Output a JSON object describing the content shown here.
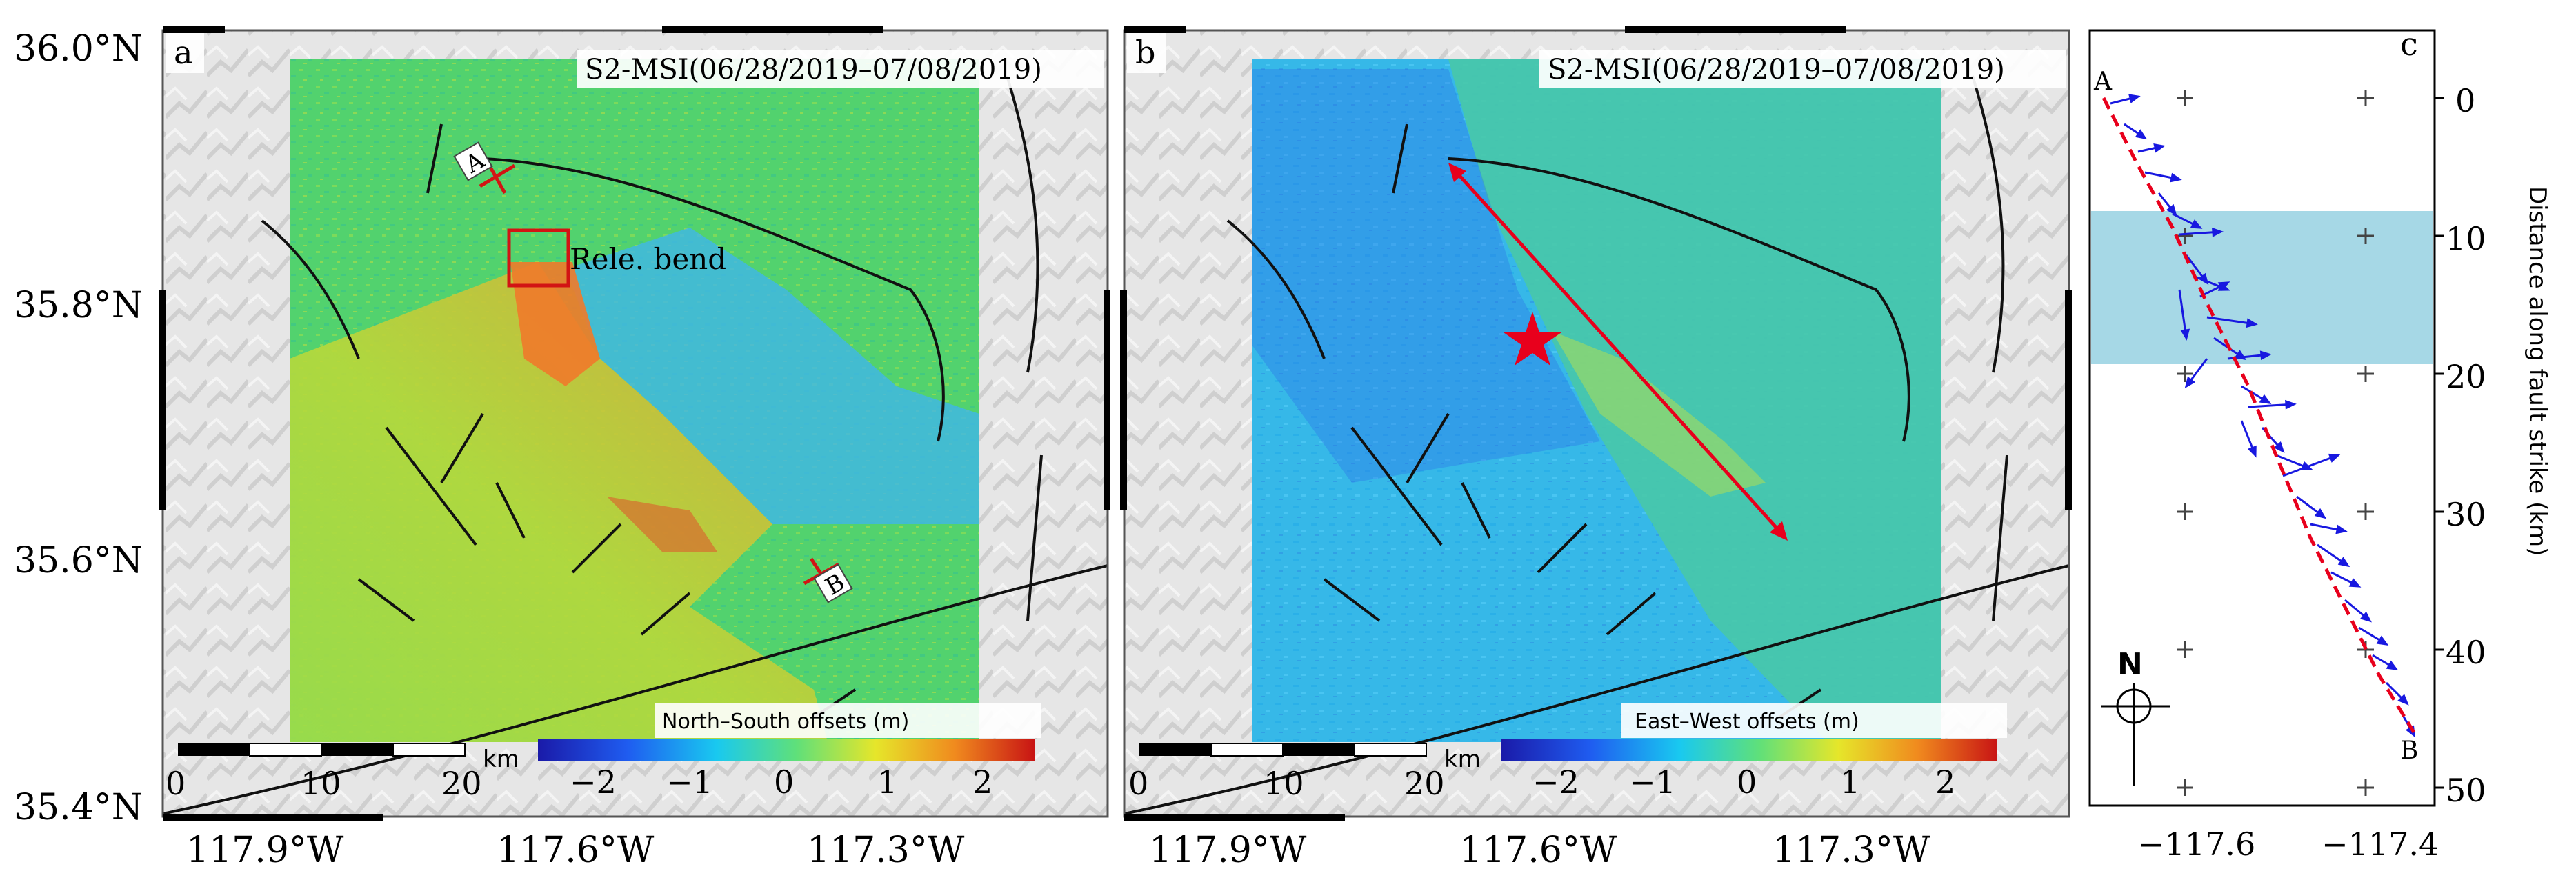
{
  "latitude_labels": [
    "36.0°N",
    "35.8°N",
    "35.6°N",
    "35.4°N"
  ],
  "panel_a": {
    "letter": "a",
    "title": "S2-MSI(06/28/2019–07/08/2019)",
    "colorbar_label": "North–South offsets (m)",
    "colorbar_ticks": [
      "−2",
      "−1",
      "0",
      "1",
      "2"
    ],
    "scale_ticks": [
      "0",
      "10",
      "20"
    ],
    "scale_unit": "km",
    "lon_labels": [
      "117.9°W",
      "117.6°W",
      "117.3°W"
    ],
    "marker_a": "A",
    "marker_b": "B",
    "box_label": "Rele. bend"
  },
  "panel_b": {
    "letter": "b",
    "title": "S2-MSI(06/28/2019–07/08/2019)",
    "colorbar_label": "East–West offsets (m)",
    "colorbar_ticks": [
      "−2",
      "−1",
      "0",
      "1",
      "2"
    ],
    "scale_ticks": [
      "0",
      "10",
      "20"
    ],
    "scale_unit": "km",
    "lon_labels": [
      "117.9°W",
      "117.6°W",
      "117.3°W"
    ]
  },
  "panel_c": {
    "letter": "c",
    "point_a": "A",
    "point_b": "B",
    "north_label": "N",
    "x_ticks": [
      "−117.6",
      "−117.4"
    ],
    "y_ticks": [
      "0",
      "10",
      "20",
      "30",
      "40",
      "50"
    ],
    "y_axis_label": "Distance along fault strike (km)"
  },
  "colors": {
    "map_base": "#e2e2e2",
    "offset_field": "#52d26e",
    "highlight_band": "#a6d8e6",
    "fault_trace": "#e8001c",
    "vector": "#1818e0"
  }
}
